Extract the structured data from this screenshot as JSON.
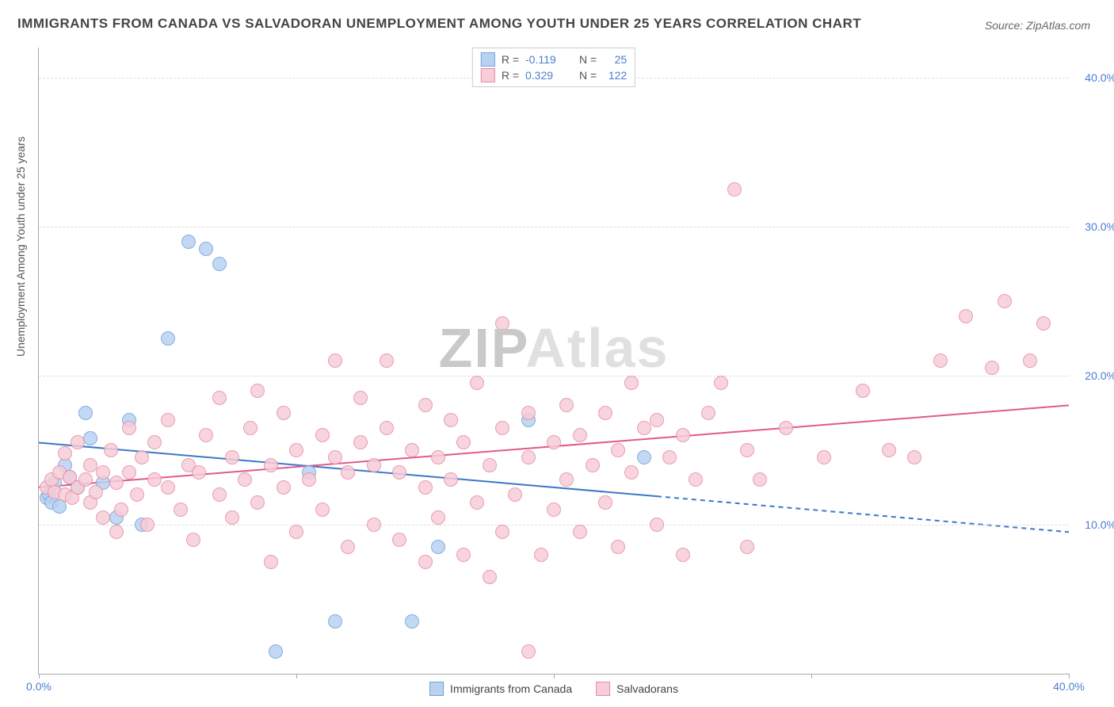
{
  "title": "IMMIGRANTS FROM CANADA VS SALVADORAN UNEMPLOYMENT AMONG YOUTH UNDER 25 YEARS CORRELATION CHART",
  "source": "Source: ZipAtlas.com",
  "y_axis_label": "Unemployment Among Youth under 25 years",
  "watermark_a": "ZIP",
  "watermark_b": "Atlas",
  "chart": {
    "type": "scatter",
    "xlim": [
      0,
      40
    ],
    "ylim": [
      0,
      42
    ],
    "x_ticks": [
      0,
      10,
      20,
      30,
      40
    ],
    "x_tick_labels": [
      "0.0%",
      "",
      "",
      "",
      "40.0%"
    ],
    "y_ticks": [
      10,
      20,
      30,
      40
    ],
    "y_tick_labels": [
      "10.0%",
      "20.0%",
      "30.0%",
      "40.0%"
    ],
    "background_color": "#ffffff",
    "grid_color": "#dddddd",
    "series": [
      {
        "name": "Immigrants from Canada",
        "legend_label": "Immigrants from Canada",
        "fill": "#b9d2f0",
        "stroke": "#6fa1dd",
        "r_value": "-0.119",
        "n_value": "25",
        "points": [
          [
            0.3,
            11.8
          ],
          [
            0.4,
            12.0
          ],
          [
            0.5,
            11.5
          ],
          [
            0.6,
            12.8
          ],
          [
            0.8,
            11.2
          ],
          [
            1.0,
            14.0
          ],
          [
            1.2,
            13.2
          ],
          [
            1.5,
            12.5
          ],
          [
            1.8,
            17.5
          ],
          [
            2.0,
            15.8
          ],
          [
            2.5,
            12.8
          ],
          [
            3.0,
            10.5
          ],
          [
            3.5,
            17.0
          ],
          [
            4.0,
            10.0
          ],
          [
            5.0,
            22.5
          ],
          [
            5.8,
            29.0
          ],
          [
            6.5,
            28.5
          ],
          [
            7.0,
            27.5
          ],
          [
            9.2,
            1.5
          ],
          [
            10.5,
            13.5
          ],
          [
            11.5,
            3.5
          ],
          [
            14.5,
            3.5
          ],
          [
            15.5,
            8.5
          ],
          [
            19.0,
            17.0
          ],
          [
            23.5,
            14.5
          ]
        ],
        "trend": {
          "y_at_x0": 15.5,
          "y_at_x40": 9.5,
          "solid_until_x": 24,
          "color": "#3b78c9",
          "width": 2
        }
      },
      {
        "name": "Salvadorans",
        "legend_label": "Salvadorans",
        "fill": "#f7cdd8",
        "stroke": "#e58ca7",
        "r_value": "0.329",
        "n_value": "122",
        "points": [
          [
            0.3,
            12.5
          ],
          [
            0.5,
            13.0
          ],
          [
            0.6,
            12.2
          ],
          [
            0.8,
            13.5
          ],
          [
            1.0,
            12.0
          ],
          [
            1.0,
            14.8
          ],
          [
            1.2,
            13.2
          ],
          [
            1.3,
            11.8
          ],
          [
            1.5,
            12.5
          ],
          [
            1.5,
            15.5
          ],
          [
            1.8,
            13.0
          ],
          [
            2.0,
            11.5
          ],
          [
            2.0,
            14.0
          ],
          [
            2.2,
            12.2
          ],
          [
            2.5,
            10.5
          ],
          [
            2.5,
            13.5
          ],
          [
            2.8,
            15.0
          ],
          [
            3.0,
            9.5
          ],
          [
            3.0,
            12.8
          ],
          [
            3.2,
            11.0
          ],
          [
            3.5,
            13.5
          ],
          [
            3.5,
            16.5
          ],
          [
            3.8,
            12.0
          ],
          [
            4.0,
            14.5
          ],
          [
            4.2,
            10.0
          ],
          [
            4.5,
            13.0
          ],
          [
            4.5,
            15.5
          ],
          [
            5.0,
            12.5
          ],
          [
            5.0,
            17.0
          ],
          [
            5.5,
            11.0
          ],
          [
            5.8,
            14.0
          ],
          [
            6.0,
            9.0
          ],
          [
            6.2,
            13.5
          ],
          [
            6.5,
            16.0
          ],
          [
            7.0,
            12.0
          ],
          [
            7.0,
            18.5
          ],
          [
            7.5,
            10.5
          ],
          [
            7.5,
            14.5
          ],
          [
            8.0,
            13.0
          ],
          [
            8.2,
            16.5
          ],
          [
            8.5,
            11.5
          ],
          [
            8.5,
            19.0
          ],
          [
            9.0,
            7.5
          ],
          [
            9.0,
            14.0
          ],
          [
            9.5,
            12.5
          ],
          [
            9.5,
            17.5
          ],
          [
            10.0,
            9.5
          ],
          [
            10.0,
            15.0
          ],
          [
            10.5,
            13.0
          ],
          [
            11.0,
            11.0
          ],
          [
            11.0,
            16.0
          ],
          [
            11.5,
            14.5
          ],
          [
            11.5,
            21.0
          ],
          [
            12.0,
            8.5
          ],
          [
            12.0,
            13.5
          ],
          [
            12.5,
            15.5
          ],
          [
            12.5,
            18.5
          ],
          [
            13.0,
            10.0
          ],
          [
            13.0,
            14.0
          ],
          [
            13.5,
            16.5
          ],
          [
            13.5,
            21.0
          ],
          [
            14.0,
            9.0
          ],
          [
            14.0,
            13.5
          ],
          [
            14.5,
            15.0
          ],
          [
            15.0,
            7.5
          ],
          [
            15.0,
            12.5
          ],
          [
            15.0,
            18.0
          ],
          [
            15.5,
            10.5
          ],
          [
            15.5,
            14.5
          ],
          [
            16.0,
            13.0
          ],
          [
            16.0,
            17.0
          ],
          [
            16.5,
            8.0
          ],
          [
            16.5,
            15.5
          ],
          [
            17.0,
            11.5
          ],
          [
            17.0,
            19.5
          ],
          [
            17.5,
            6.5
          ],
          [
            17.5,
            14.0
          ],
          [
            18.0,
            9.5
          ],
          [
            18.0,
            16.5
          ],
          [
            18.0,
            23.5
          ],
          [
            18.5,
            12.0
          ],
          [
            19.0,
            1.5
          ],
          [
            19.0,
            14.5
          ],
          [
            19.0,
            17.5
          ],
          [
            19.5,
            8.0
          ],
          [
            20.0,
            11.0
          ],
          [
            20.0,
            15.5
          ],
          [
            20.5,
            13.0
          ],
          [
            20.5,
            18.0
          ],
          [
            21.0,
            9.5
          ],
          [
            21.0,
            16.0
          ],
          [
            21.5,
            14.0
          ],
          [
            22.0,
            11.5
          ],
          [
            22.0,
            17.5
          ],
          [
            22.5,
            8.5
          ],
          [
            22.5,
            15.0
          ],
          [
            23.0,
            13.5
          ],
          [
            23.0,
            19.5
          ],
          [
            23.5,
            16.5
          ],
          [
            24.0,
            10.0
          ],
          [
            24.0,
            17.0
          ],
          [
            24.5,
            14.5
          ],
          [
            25.0,
            8.0
          ],
          [
            25.0,
            16.0
          ],
          [
            25.5,
            13.0
          ],
          [
            26.0,
            17.5
          ],
          [
            26.5,
            19.5
          ],
          [
            27.0,
            32.5
          ],
          [
            27.5,
            8.5
          ],
          [
            27.5,
            15.0
          ],
          [
            28.0,
            13.0
          ],
          [
            29.0,
            16.5
          ],
          [
            30.5,
            14.5
          ],
          [
            32.0,
            19.0
          ],
          [
            33.0,
            15.0
          ],
          [
            34.0,
            14.5
          ],
          [
            35.0,
            21.0
          ],
          [
            36.0,
            24.0
          ],
          [
            37.0,
            20.5
          ],
          [
            37.5,
            25.0
          ],
          [
            38.5,
            21.0
          ],
          [
            39.0,
            23.5
          ]
        ],
        "trend": {
          "y_at_x0": 12.5,
          "y_at_x40": 18.0,
          "solid_until_x": 40,
          "color": "#e15a8a",
          "width": 2
        }
      }
    ]
  }
}
